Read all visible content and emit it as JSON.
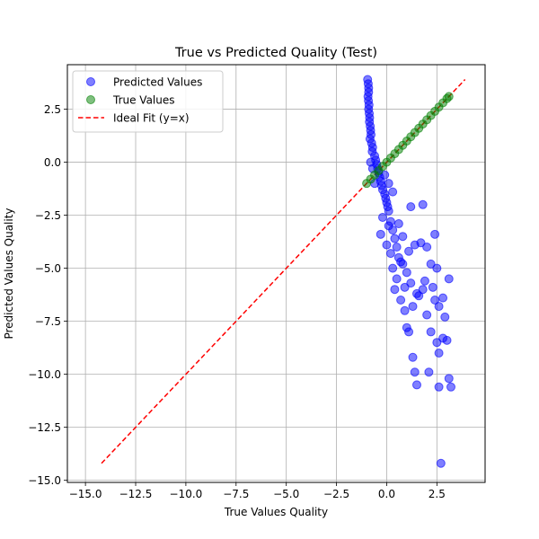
{
  "chart_data": {
    "type": "scatter",
    "title": "True vs Predicted Quality (Test)",
    "xlabel": "True Values Quality",
    "ylabel": "Predicted Values Quality",
    "xlim": [
      -15.9,
      4.9
    ],
    "ylim": [
      -15.1,
      4.6
    ],
    "xticks": [
      -15.0,
      -12.5,
      -10.0,
      -7.5,
      -5.0,
      -2.5,
      0.0,
      2.5
    ],
    "yticks": [
      -15.0,
      -12.5,
      -10.0,
      -7.5,
      -5.0,
      -2.5,
      0.0,
      2.5
    ],
    "xtick_labels": [
      "−15.0",
      "−12.5",
      "−10.0",
      "−7.5",
      "−5.0",
      "−2.5",
      "0.0",
      "2.5"
    ],
    "ytick_labels": [
      "−15.0",
      "−12.5",
      "−10.0",
      "−7.5",
      "−5.0",
      "−2.5",
      "0.0",
      "2.5"
    ],
    "grid": true,
    "legend_position": "upper-left",
    "colors": {
      "predicted": "#0000ff",
      "true": "#008000",
      "ideal": "#ff0000"
    },
    "series": [
      {
        "name": "Predicted Values",
        "kind": "scatter",
        "points": [
          [
            -0.95,
            3.9
          ],
          [
            -0.92,
            3.7
          ],
          [
            -0.9,
            3.5
          ],
          [
            -0.9,
            3.3
          ],
          [
            -0.93,
            3.1
          ],
          [
            -0.91,
            2.9
          ],
          [
            -0.88,
            2.7
          ],
          [
            -0.9,
            2.5
          ],
          [
            -0.87,
            2.3
          ],
          [
            -0.85,
            2.1
          ],
          [
            -0.86,
            1.9
          ],
          [
            -0.82,
            1.7
          ],
          [
            -0.8,
            1.5
          ],
          [
            -0.78,
            1.3
          ],
          [
            -0.83,
            1.1
          ],
          [
            -0.75,
            0.9
          ],
          [
            -0.7,
            0.7
          ],
          [
            -0.72,
            0.5
          ],
          [
            -0.6,
            0.3
          ],
          [
            -0.55,
            0.1
          ],
          [
            -0.5,
            -0.1
          ],
          [
            -0.45,
            -0.3
          ],
          [
            -0.4,
            -0.5
          ],
          [
            -0.35,
            -0.7
          ],
          [
            -0.3,
            -0.9
          ],
          [
            -0.25,
            -1.1
          ],
          [
            -0.2,
            -1.3
          ],
          [
            -0.1,
            -1.5
          ],
          [
            -0.05,
            -1.7
          ],
          [
            0.0,
            -1.9
          ],
          [
            0.05,
            -2.1
          ],
          [
            0.1,
            -2.3
          ],
          [
            -0.2,
            -2.6
          ],
          [
            0.2,
            -2.8
          ],
          [
            0.1,
            -3.0
          ],
          [
            0.3,
            -3.2
          ],
          [
            -0.3,
            -3.4
          ],
          [
            0.4,
            -3.6
          ],
          [
            0.0,
            -3.9
          ],
          [
            0.5,
            -4.0
          ],
          [
            0.2,
            -4.3
          ],
          [
            0.6,
            -4.5
          ],
          [
            0.8,
            -4.8
          ],
          [
            0.3,
            -5.0
          ],
          [
            1.0,
            -5.2
          ],
          [
            0.5,
            -5.5
          ],
          [
            1.2,
            -5.7
          ],
          [
            0.4,
            -6.0
          ],
          [
            1.5,
            -6.2
          ],
          [
            0.7,
            -6.5
          ],
          [
            1.3,
            -6.8
          ],
          [
            2.5,
            -5.0
          ],
          [
            2.0,
            -4.0
          ],
          [
            1.8,
            -2.0
          ],
          [
            2.4,
            -3.4
          ],
          [
            2.2,
            -4.8
          ],
          [
            1.7,
            -3.8
          ],
          [
            0.9,
            -7.0
          ],
          [
            1.0,
            -7.8
          ],
          [
            1.1,
            -8.0
          ],
          [
            2.0,
            -7.2
          ],
          [
            2.2,
            -8.0
          ],
          [
            2.5,
            -8.5
          ],
          [
            2.8,
            -8.3
          ],
          [
            3.0,
            -8.4
          ],
          [
            2.9,
            -7.3
          ],
          [
            2.6,
            -9.0
          ],
          [
            1.3,
            -9.2
          ],
          [
            1.4,
            -9.9
          ],
          [
            1.5,
            -10.5
          ],
          [
            2.1,
            -9.9
          ],
          [
            2.6,
            -10.6
          ],
          [
            3.1,
            -10.2
          ],
          [
            3.2,
            -10.6
          ],
          [
            2.8,
            -6.4
          ],
          [
            2.4,
            -6.5
          ],
          [
            3.1,
            -5.5
          ],
          [
            2.7,
            -14.2
          ],
          [
            1.8,
            -6.0
          ],
          [
            1.6,
            -6.3
          ],
          [
            0.8,
            -3.5
          ],
          [
            1.1,
            -4.2
          ],
          [
            1.4,
            -3.9
          ],
          [
            0.7,
            -4.7
          ],
          [
            0.9,
            -5.9
          ],
          [
            1.9,
            -5.6
          ],
          [
            2.3,
            -5.9
          ],
          [
            2.6,
            -6.8
          ],
          [
            1.2,
            -2.1
          ],
          [
            0.6,
            -2.9
          ],
          [
            -0.1,
            -0.6
          ],
          [
            0.1,
            -1.0
          ],
          [
            0.3,
            -1.4
          ],
          [
            -0.6,
            -1.0
          ],
          [
            -0.8,
            0.0
          ],
          [
            -0.7,
            -0.3
          ]
        ]
      },
      {
        "name": "True Values",
        "kind": "scatter",
        "points": [
          [
            -1.0,
            -1.0
          ],
          [
            -0.8,
            -0.8
          ],
          [
            -0.6,
            -0.6
          ],
          [
            -0.4,
            -0.4
          ],
          [
            -0.2,
            -0.2
          ],
          [
            0.0,
            0.0
          ],
          [
            0.2,
            0.2
          ],
          [
            0.4,
            0.4
          ],
          [
            0.6,
            0.6
          ],
          [
            0.8,
            0.8
          ],
          [
            1.0,
            1.0
          ],
          [
            1.2,
            1.2
          ],
          [
            1.4,
            1.4
          ],
          [
            1.6,
            1.6
          ],
          [
            1.8,
            1.8
          ],
          [
            2.0,
            2.0
          ],
          [
            2.2,
            2.2
          ],
          [
            2.4,
            2.4
          ],
          [
            2.6,
            2.6
          ],
          [
            2.8,
            2.8
          ],
          [
            3.0,
            3.0
          ],
          [
            3.1,
            3.1
          ]
        ]
      },
      {
        "name": "Ideal Fit (y=x)",
        "kind": "line",
        "points": [
          [
            -14.2,
            -14.2
          ],
          [
            3.9,
            3.9
          ]
        ]
      }
    ]
  }
}
